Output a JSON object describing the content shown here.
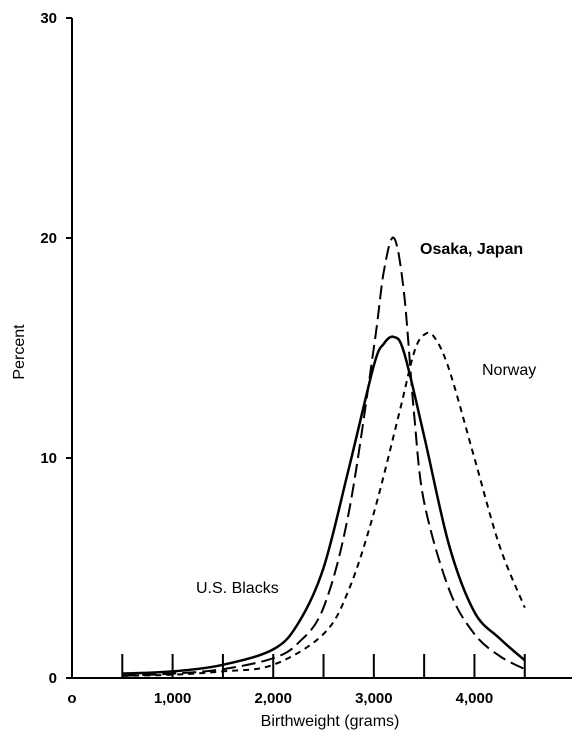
{
  "chart_data": {
    "type": "line",
    "title": "",
    "xlabel": "Birthweight (grams)",
    "ylabel": "Percent",
    "xlim": [
      0,
      4900
    ],
    "ylim": [
      0,
      30
    ],
    "x_ticks": [
      {
        "value": 0,
        "label": "o"
      },
      {
        "value": 1000,
        "label": "1,000"
      },
      {
        "value": 2000,
        "label": "2,000"
      },
      {
        "value": 3000,
        "label": "3,000"
      },
      {
        "value": 4000,
        "label": "4,000"
      }
    ],
    "y_ticks": [
      {
        "value": 0,
        "label": "0"
      },
      {
        "value": 10,
        "label": "10"
      },
      {
        "value": 20,
        "label": "20"
      },
      {
        "value": 30,
        "label": "30"
      }
    ],
    "minor_x_ticks": [
      500,
      1000,
      1500,
      2000,
      2500,
      3000,
      3500,
      4000,
      4500
    ],
    "grid": false,
    "series": [
      {
        "name": "U.S. Blacks",
        "style": "solid",
        "x": [
          500,
          1000,
          1500,
          2000,
          2250,
          2500,
          2750,
          3000,
          3100,
          3200,
          3300,
          3500,
          3750,
          4000,
          4250,
          4500
        ],
        "y": [
          0.2,
          0.3,
          0.6,
          1.3,
          2.5,
          5.0,
          9.5,
          14.2,
          15.2,
          15.5,
          14.8,
          11.0,
          6.0,
          3.0,
          1.8,
          0.8
        ]
      },
      {
        "name": "Osaka, Japan",
        "style": "dashed",
        "x": [
          500,
          1000,
          1500,
          2000,
          2250,
          2500,
          2750,
          3000,
          3100,
          3200,
          3300,
          3400,
          3500,
          3750,
          4000,
          4250,
          4500
        ],
        "y": [
          0.1,
          0.2,
          0.4,
          0.9,
          1.6,
          3.2,
          7.5,
          15.0,
          18.5,
          20.0,
          17.5,
          12.0,
          8.0,
          4.0,
          2.0,
          1.0,
          0.4
        ]
      },
      {
        "name": "Norway",
        "style": "dotted",
        "x": [
          500,
          1000,
          1500,
          2000,
          2500,
          2750,
          3000,
          3250,
          3400,
          3500,
          3600,
          3750,
          4000,
          4250,
          4500
        ],
        "y": [
          0.1,
          0.15,
          0.3,
          0.6,
          2.0,
          4.0,
          7.5,
          12.0,
          14.8,
          15.6,
          15.5,
          14.0,
          10.0,
          6.0,
          3.2
        ]
      }
    ],
    "labels": {
      "osaka": "Osaka,  Japan",
      "norway": "Norway",
      "usblacks": "U.S. Blacks"
    }
  }
}
